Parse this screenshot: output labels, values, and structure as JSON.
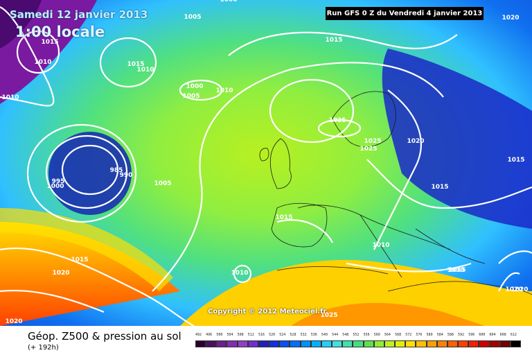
{
  "header": {
    "date": "Samedi 12 janvier 2013",
    "time": "1:00 locale",
    "run": "Run GFS 0 Z du Vendredi 4 janvier 2013"
  },
  "map": {
    "copyright": "Copyright © 2012 Meteociel.fr",
    "pressure_labels": [
      "1000",
      "1005",
      "1000",
      "1015",
      "1015",
      "1010",
      "1010",
      "1015",
      "1010",
      "1000",
      "1005",
      "1010",
      "1015",
      "1025",
      "1025",
      "1025",
      "1020",
      "1020",
      "1015",
      "985",
      "990",
      "995",
      "1000",
      "1005",
      "1015",
      "1015",
      "1010",
      "1010",
      "1020",
      "1015",
      "1010",
      "1020",
      "1020",
      "1025",
      "1020"
    ]
  },
  "footer": {
    "title": "Géop. Z500 & pression au sol",
    "subtitle": "(+ 192h)"
  },
  "legend": {
    "ticks": [
      "492",
      "496",
      "500",
      "504",
      "508",
      "512",
      "516",
      "520",
      "524",
      "528",
      "532",
      "536",
      "540",
      "544",
      "548",
      "552",
      "556",
      "560",
      "564",
      "568",
      "572",
      "576",
      "580",
      "584",
      "588",
      "592",
      "596",
      "600",
      "604",
      "608",
      "612"
    ],
    "colors": [
      "#2a0030",
      "#4a1060",
      "#6a2090",
      "#8030b0",
      "#9040c8",
      "#7030d0",
      "#2020c0",
      "#1030e0",
      "#0850f0",
      "#0070ff",
      "#0090ff",
      "#00b0ff",
      "#20d0ff",
      "#40e0e0",
      "#40e0b0",
      "#40e080",
      "#60e050",
      "#90f030",
      "#c0f020",
      "#e0f000",
      "#ffe000",
      "#ffc000",
      "#ffa000",
      "#ff8000",
      "#ff6000",
      "#ff4000",
      "#f02000",
      "#d00000",
      "#a00000",
      "#700000",
      "#000000"
    ]
  }
}
